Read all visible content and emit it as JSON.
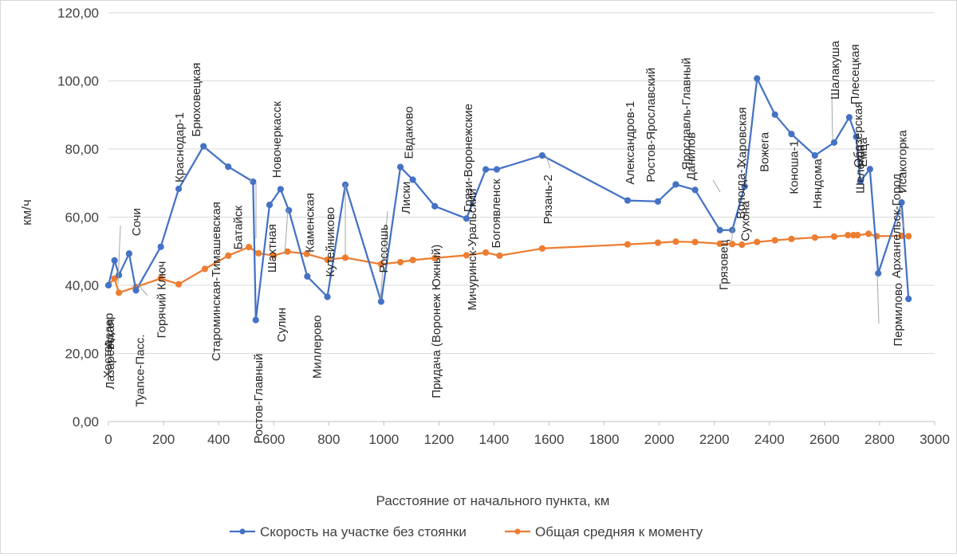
{
  "chart_data": {
    "type": "line",
    "title": "",
    "xlabel": "Расстояние от начального пункта, км",
    "ylabel": "км/ч",
    "xlim": [
      0,
      3000
    ],
    "ylim": [
      0,
      120
    ],
    "x_ticks": [
      0,
      200,
      400,
      600,
      800,
      1000,
      1200,
      1400,
      1600,
      1800,
      2000,
      2200,
      2400,
      2600,
      2800,
      3000
    ],
    "y_ticks": [
      0,
      20,
      40,
      60,
      80,
      100,
      120
    ],
    "y_tick_labels": [
      "0,00",
      "20,00",
      "40,00",
      "60,00",
      "80,00",
      "100,00",
      "120,00"
    ],
    "grid": "horizontal",
    "legend_position": "bottom",
    "series": [
      {
        "name": "Скорость на участке без стоянки",
        "color": "#4472c4",
        "points": [
          [
            0,
            40
          ],
          [
            22,
            47.3
          ],
          [
            38,
            43
          ],
          [
            75,
            49.3
          ],
          [
            100,
            38.5
          ],
          [
            190,
            51.3
          ],
          [
            255,
            68.3
          ],
          [
            345,
            80.8
          ],
          [
            435,
            74.8
          ],
          [
            525,
            70.4
          ],
          [
            535,
            29.8
          ],
          [
            585,
            63.6
          ],
          [
            625,
            68.2
          ],
          [
            655,
            62
          ],
          [
            722,
            42.6
          ],
          [
            795,
            36.6
          ],
          [
            860,
            69.5
          ],
          [
            990,
            35.2
          ],
          [
            1060,
            74.7
          ],
          [
            1105,
            71
          ],
          [
            1185,
            63.2
          ],
          [
            1300,
            59.6
          ],
          [
            1370,
            74
          ],
          [
            1410,
            74
          ],
          [
            1575,
            78.1
          ],
          [
            1885,
            64.9
          ],
          [
            1995,
            64.6
          ],
          [
            2060,
            69.6
          ],
          [
            2130,
            68
          ],
          [
            2220,
            56.2
          ],
          [
            2265,
            56.2
          ],
          [
            2310,
            69
          ],
          [
            2355,
            100.7
          ],
          [
            2420,
            90.1
          ],
          [
            2480,
            84.4
          ],
          [
            2565,
            78.1
          ],
          [
            2635,
            81.9
          ],
          [
            2690,
            89.3
          ],
          [
            2715,
            83.6
          ],
          [
            2730,
            70.5
          ],
          [
            2765,
            74.1
          ],
          [
            2795,
            43.5
          ],
          [
            2880,
            64.3
          ],
          [
            2905,
            36
          ]
        ]
      },
      {
        "name": "Общая средняя к моменту",
        "color": "#ed7d31",
        "points": [
          [
            0,
            40
          ],
          [
            22,
            42
          ],
          [
            38,
            37.8
          ],
          [
            100,
            39.5
          ],
          [
            190,
            42
          ],
          [
            255,
            40.3
          ],
          [
            350,
            44.8
          ],
          [
            435,
            48.7
          ],
          [
            510,
            51.2
          ],
          [
            545,
            49.4
          ],
          [
            600,
            48.7
          ],
          [
            650,
            49.9
          ],
          [
            720,
            49.2
          ],
          [
            795,
            47.5
          ],
          [
            860,
            48.1
          ],
          [
            990,
            46.2
          ],
          [
            1060,
            46.8
          ],
          [
            1105,
            47.4
          ],
          [
            1185,
            48
          ],
          [
            1300,
            48.8
          ],
          [
            1370,
            49.6
          ],
          [
            1420,
            48.7
          ],
          [
            1575,
            50.8
          ],
          [
            1885,
            52
          ],
          [
            1995,
            52.5
          ],
          [
            2060,
            52.8
          ],
          [
            2130,
            52.7
          ],
          [
            2220,
            52.2
          ],
          [
            2265,
            52.1
          ],
          [
            2300,
            51.9
          ],
          [
            2355,
            52.7
          ],
          [
            2420,
            53.2
          ],
          [
            2480,
            53.6
          ],
          [
            2565,
            54
          ],
          [
            2635,
            54.3
          ],
          [
            2685,
            54.7
          ],
          [
            2705,
            54.7
          ],
          [
            2720,
            54.7
          ],
          [
            2760,
            55.1
          ],
          [
            2790,
            54.4
          ],
          [
            2880,
            54.5
          ],
          [
            2905,
            54.4
          ]
        ]
      }
    ],
    "point_labels": [
      {
        "text": "Хоства",
        "x": 0,
        "y": 40
      },
      {
        "text": "Адлер",
        "x": 22,
        "y": 47.3
      },
      {
        "text": "Лазаревская",
        "x": 38,
        "y": 43
      },
      {
        "text": "Сочи",
        "x": 75,
        "y": 49.3
      },
      {
        "text": "Туапсе-Пасс.",
        "x": 100,
        "y": 38.5
      },
      {
        "text": "Горячий Ключ",
        "x": 190,
        "y": 51.3
      },
      {
        "text": "Краснодар-1",
        "x": 255,
        "y": 68.3
      },
      {
        "text": "Брюховецкая",
        "x": 345,
        "y": 80.8
      },
      {
        "text": "Староминская-Тимашевская",
        "x": 435,
        "y": 74.8
      },
      {
        "text": "Батайск",
        "x": 525,
        "y": 70.4
      },
      {
        "text": "Ростов-Главный",
        "x": 535,
        "y": 29.8
      },
      {
        "text": "Шахтная",
        "x": 585,
        "y": 63.6
      },
      {
        "text": "Новочеркасск",
        "x": 625,
        "y": 68.2
      },
      {
        "text": "Сулин",
        "x": 655,
        "y": 62
      },
      {
        "text": "Каменская",
        "x": 722,
        "y": 42.6
      },
      {
        "text": "Миллерово",
        "x": 795,
        "y": 36.6
      },
      {
        "text": "Кутейниково",
        "x": 860,
        "y": 69.5
      },
      {
        "text": "Россошь",
        "x": 990,
        "y": 35.2
      },
      {
        "text": "Лиски",
        "x": 1060,
        "y": 74.7
      },
      {
        "text": "Евдаково",
        "x": 1105,
        "y": 71
      },
      {
        "text": "Придача (Воронеж Южный)",
        "x": 1185,
        "y": 63.2
      },
      {
        "text": "Грязи-Воронежские",
        "x": 1300,
        "y": 59.6
      },
      {
        "text": "Мичуринск-Уральский",
        "x": 1370,
        "y": 74
      },
      {
        "text": "Богоявленск",
        "x": 1410,
        "y": 74
      },
      {
        "text": "Рязань-2",
        "x": 1575,
        "y": 78.1
      },
      {
        "text": "Александров-1",
        "x": 1885,
        "y": 64.9
      },
      {
        "text": "Ростов-Ярославский",
        "x": 1995,
        "y": 64.6
      },
      {
        "text": "Ярославль-Главный",
        "x": 2060,
        "y": 69.6
      },
      {
        "text": "Данилов",
        "x": 2130,
        "y": 68
      },
      {
        "text": "Грязовец",
        "x": 2220,
        "y": 56.2
      },
      {
        "text": "Вологда-1",
        "x": 2265,
        "y": 56.2
      },
      {
        "text": "Сухона",
        "x": 2310,
        "y": 69
      },
      {
        "text": "Харовская",
        "x": 2355,
        "y": 100.7
      },
      {
        "text": "Вожега",
        "x": 2420,
        "y": 90.1
      },
      {
        "text": "Коноша-1",
        "x": 2480,
        "y": 84.4
      },
      {
        "text": "Няндома",
        "x": 2565,
        "y": 78.1
      },
      {
        "text": "Шалакуша",
        "x": 2635,
        "y": 81.9
      },
      {
        "text": "Плесецкая",
        "x": 2690,
        "y": 89.3
      },
      {
        "text": "Шелекса",
        "x": 2715,
        "y": 83.6
      },
      {
        "text": "Емца",
        "x": 2730,
        "y": 70.5
      },
      {
        "text": "Обозерская",
        "x": 2765,
        "y": 74.1
      },
      {
        "text": "Пермилово",
        "x": 2795,
        "y": 43.5
      },
      {
        "text": "Исакогорка",
        "x": 2880,
        "y": 64.3
      },
      {
        "text": "Архангельск-Город",
        "x": 2905,
        "y": 36
      }
    ]
  }
}
